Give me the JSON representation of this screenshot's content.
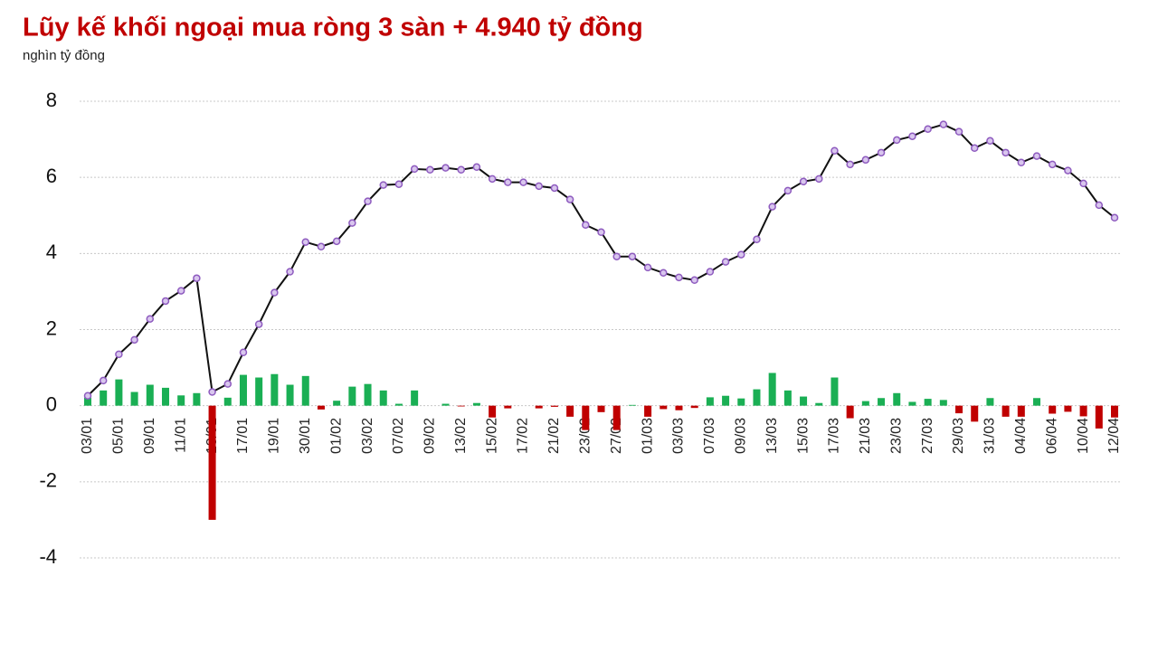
{
  "chart_data": {
    "type": "bar_line",
    "title": "Lũy kế khối ngoại mua ròng 3 sàn + 4.940 tỷ đồng",
    "subtitle": "nghìn tỷ đồng",
    "categories": [
      "03/01",
      null,
      "05/01",
      null,
      "09/01",
      null,
      "11/01",
      null,
      "13/01",
      null,
      "17/01",
      null,
      "19/01",
      null,
      "30/01",
      null,
      "01/02",
      null,
      "03/02",
      null,
      "07/02",
      null,
      "09/02",
      null,
      "13/02",
      null,
      "15/02",
      null,
      "17/02",
      null,
      "21/02",
      null,
      "23/02",
      null,
      "27/02",
      null,
      "01/03",
      null,
      "03/03",
      null,
      "07/03",
      null,
      "09/03",
      null,
      "13/03",
      null,
      "15/03",
      null,
      "17/03",
      null,
      "21/03",
      null,
      "23/03",
      null,
      "27/03",
      null,
      "29/03",
      null,
      "31/03",
      null,
      "04/04",
      null,
      "06/04",
      null,
      "10/04",
      null,
      "12/04"
    ],
    "series": [
      {
        "type": "bar",
        "color": "#1aaf54",
        "negative_color": "#c00000",
        "values": [
          0.21,
          0.4,
          0.69,
          0.36,
          0.55,
          0.47,
          0.27,
          0.33,
          -3.0,
          0.21,
          0.81,
          0.74,
          0.83,
          0.55,
          0.78,
          -0.1,
          0.13,
          0.5,
          0.57,
          0.4,
          0.05,
          0.4,
          0,
          0.05,
          -0.02,
          0.07,
          -0.31,
          -0.07,
          0,
          -0.07,
          -0.03,
          -0.29,
          -0.64,
          -0.17,
          -0.64,
          0.02,
          -0.29,
          -0.09,
          -0.12,
          -0.06,
          0.22,
          0.26,
          0.19,
          0.43,
          0.86,
          0.4,
          0.24,
          0.07,
          0.74,
          -0.33,
          0.12,
          0.2,
          0.33,
          0.1,
          0.18,
          0.15,
          -0.2,
          -0.42,
          0.2,
          -0.29,
          -0.29,
          0.2,
          -0.21,
          -0.16,
          -0.28,
          -0.6,
          -0.31
        ]
      },
      {
        "type": "line",
        "color": "#111111",
        "marker_color": "#8e5bbf",
        "values": [
          0.26,
          0.66,
          1.35,
          1.73,
          2.28,
          2.75,
          3.02,
          3.35,
          0.36,
          0.57,
          1.4,
          2.14,
          2.97,
          3.52,
          4.3,
          4.18,
          4.32,
          4.8,
          5.37,
          5.8,
          5.82,
          6.22,
          6.2,
          6.25,
          6.2,
          6.27,
          5.96,
          5.87,
          5.87,
          5.77,
          5.72,
          5.42,
          4.75,
          4.56,
          3.92,
          3.92,
          3.63,
          3.49,
          3.37,
          3.3,
          3.52,
          3.78,
          3.97,
          4.37,
          5.23,
          5.65,
          5.89,
          5.96,
          6.7,
          6.34,
          6.46,
          6.65,
          6.98,
          7.08,
          7.27,
          7.39,
          7.2,
          6.77,
          6.96,
          6.65,
          6.39,
          6.56,
          6.34,
          6.18,
          5.84,
          5.27,
          4.94
        ]
      }
    ],
    "ylim": [
      -4,
      8
    ],
    "yticks": [
      -4,
      -2,
      0,
      2,
      4,
      6,
      8
    ],
    "grid": true
  }
}
